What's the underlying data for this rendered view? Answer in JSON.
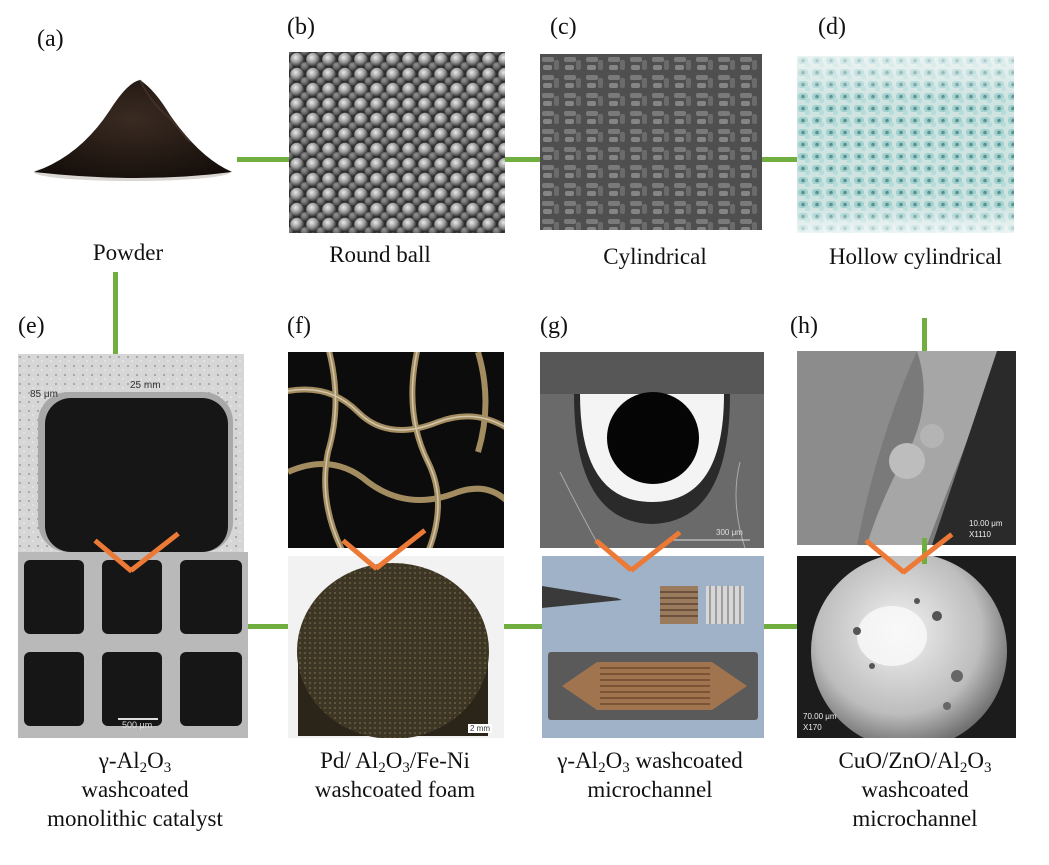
{
  "panels": {
    "a": {
      "letter": "(a)",
      "caption": "Powder"
    },
    "b": {
      "letter": "(b)",
      "caption": "Round ball"
    },
    "c": {
      "letter": "(c)",
      "caption": "Cylindrical"
    },
    "d": {
      "letter": "(d)",
      "caption": "Hollow cylindrical"
    },
    "e": {
      "letter": "(e)",
      "caption": {
        "line1_prefix": "γ-Al",
        "s1": "2",
        "line1_mid": "O",
        "s2": "3",
        "line2": "washcoated",
        "line3": "monolithic catalyst"
      }
    },
    "f": {
      "letter": "(f)",
      "caption": {
        "line1_prefix": "Pd/ Al",
        "s1": "2",
        "line1_mid": "O",
        "s2": "3",
        "line1_suffix": "/Fe-Ni",
        "line2": "washcoated foam"
      }
    },
    "g": {
      "letter": "(g)",
      "caption": {
        "line1_prefix": "γ-Al",
        "s1": "2",
        "line1_mid": "O",
        "s2": "3",
        "line1_suffix": " washcoated",
        "line2": "microchannel"
      }
    },
    "h": {
      "letter": "(h)",
      "caption": {
        "line1_prefix": "CuO/ZnO/Al",
        "s1": "2",
        "line1_mid": "O",
        "s2": "3",
        "line2": "washcoated",
        "line3": "microchannel"
      }
    }
  },
  "micrograph_text": {
    "e_top_scale_1": "85 μm",
    "e_top_scale_2": "25 mm",
    "e_bottom_scale": "500 μm",
    "f_bottom_scale": "2 mm",
    "g_top_scale": "300 μm",
    "h_top_scale": "10.00 μm",
    "h_top_mag": "X1110",
    "h_bottom_scale": "70.00 μm",
    "h_bottom_mag": "X170"
  },
  "colors": {
    "connector": "#6fae3f",
    "arrow": "#ec7a36"
  }
}
